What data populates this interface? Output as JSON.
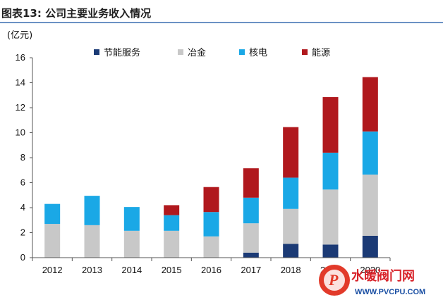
{
  "header": {
    "title": "图表13:  公司主要业务收入情况"
  },
  "chart_data": {
    "type": "bar",
    "stacked": true,
    "unit": "(亿元)",
    "categories": [
      "2012",
      "2013",
      "2014",
      "2015",
      "2016",
      "2017",
      "2018",
      "2019",
      "2020"
    ],
    "ylim": [
      0,
      16
    ],
    "yticks": [
      0,
      2,
      4,
      6,
      8,
      10,
      12,
      14,
      16
    ],
    "grid": false,
    "legend_position": "top",
    "series": [
      {
        "name": "节能服务",
        "color": "#1b3a75",
        "values": [
          0,
          0,
          0,
          0,
          0,
          0.4,
          1.1,
          1.05,
          1.75
        ]
      },
      {
        "name": "冶金",
        "color": "#c8c8c8",
        "values": [
          2.7,
          2.6,
          2.15,
          2.15,
          1.7,
          2.35,
          2.8,
          4.4,
          4.9
        ]
      },
      {
        "name": "核电",
        "color": "#1aa8e6",
        "values": [
          1.6,
          2.35,
          1.9,
          1.25,
          1.95,
          2.05,
          2.5,
          2.95,
          3.45
        ]
      },
      {
        "name": "能源",
        "color": "#b0181d",
        "values": [
          0,
          0,
          0,
          0.8,
          2.0,
          2.35,
          4.05,
          4.45,
          4.35
        ]
      }
    ]
  },
  "watermark": {
    "text": "水暖阀门网",
    "subtext": "WWW.PVCPU.COM"
  },
  "colors": {
    "header_rule": "#3a6fb0",
    "axis": "#555555"
  }
}
